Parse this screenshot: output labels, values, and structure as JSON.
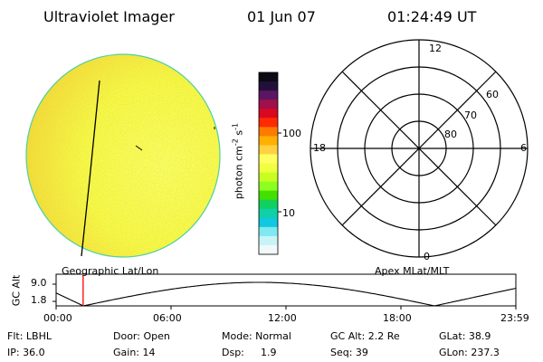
{
  "header": {
    "instrument": "Ultraviolet Imager",
    "date": "01 Jun 07",
    "time": "01:24:49 UT"
  },
  "image_panel": {
    "caption": "Geographic Lat/Lon"
  },
  "colorbar": {
    "unit_label": "photon cm^-2 s^-1",
    "ticks": [
      "100",
      "10"
    ],
    "colors": [
      "#0a0a12",
      "#22103a",
      "#5a1660",
      "#a0104a",
      "#d80820",
      "#ff2a00",
      "#ff7a00",
      "#ffb000",
      "#ffd040",
      "#ffff60",
      "#f0ff40",
      "#c8ff20",
      "#8cff20",
      "#44e000",
      "#10d060",
      "#10d0a8",
      "#10c8e0",
      "#80e8f0",
      "#c8f4f8",
      "#f0f8f8"
    ]
  },
  "polar_panel": {
    "caption": "Apex MLat/MLT",
    "mlt_labels": {
      "top": "12",
      "bottom": "0",
      "left": "18",
      "right": "6"
    },
    "lat_labels": [
      "60",
      "70",
      "80"
    ]
  },
  "altitude_panel": {
    "axis_label": "GC Alt",
    "y_ticks": [
      "9.0",
      "1.8"
    ],
    "x_ticks": [
      "00:00",
      "06:00",
      "12:00",
      "18:00",
      "23:59"
    ],
    "current_time_marker_hours": 1.41,
    "marker_color": "#ff0000"
  },
  "info": {
    "filter": "Flt: LBHL",
    "door": "Door: Open",
    "mode": "Mode: Normal",
    "gc_alt": "GC Alt: 2.2 Re",
    "glat": "GLat:  38.9",
    "ip": "IP: 36.0",
    "gain": "Gain: 14",
    "dsp_label": "Dsp:",
    "dsp_value": "1.9",
    "seq": "Seq: 39",
    "glon": "GLon: 237.3"
  }
}
